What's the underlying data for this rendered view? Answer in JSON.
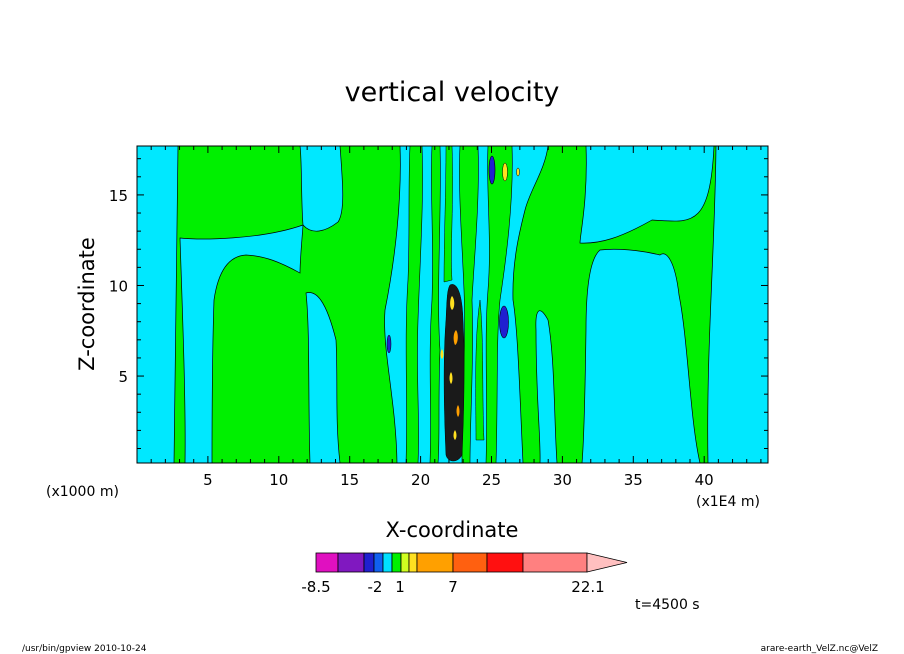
{
  "chart_data": {
    "type": "heatmap",
    "title": "vertical velocity",
    "xlabel": "X-coordinate",
    "ylabel": "Z-coordinate",
    "x_unit": "(x1E4 m)",
    "y_unit": "(x1000 m)",
    "xlim": [
      0,
      44.5
    ],
    "ylim": [
      0.2,
      17.7
    ],
    "x_ticks": [
      "5",
      "10",
      "15",
      "20",
      "25",
      "30",
      "35",
      "40"
    ],
    "y_ticks": [
      "5",
      "10",
      "15"
    ],
    "colorbar": {
      "labels": [
        "-8.5",
        "-2",
        "1",
        "7",
        "22.1"
      ],
      "colors": [
        "#e010c0",
        "#8018c0",
        "#2020d0",
        "#1060f0",
        "#00e0ff",
        "#00f000",
        "#d0ff20",
        "#ffe020",
        "#ffa000",
        "#ff6010",
        "#ff1010",
        "#ff8080",
        "#ffc0c0"
      ],
      "extend": "max"
    },
    "time_label": "t=4500 s",
    "features": [
      {
        "x": 22.5,
        "z": 6.0,
        "value": 22.1,
        "desc": "strong updraft core"
      },
      {
        "x": 26.0,
        "z": 7.7,
        "value": -2,
        "desc": "downdraft"
      },
      {
        "x": 25.2,
        "z": 16.2,
        "value": -2,
        "desc": "downdraft"
      },
      {
        "x": 17.6,
        "z": 6.7,
        "value": -2,
        "desc": "downdraft"
      }
    ]
  },
  "footer": {
    "left": "/usr/bin/gpview  2010-10-24",
    "right": "arare-earth_VelZ.nc@VelZ"
  }
}
